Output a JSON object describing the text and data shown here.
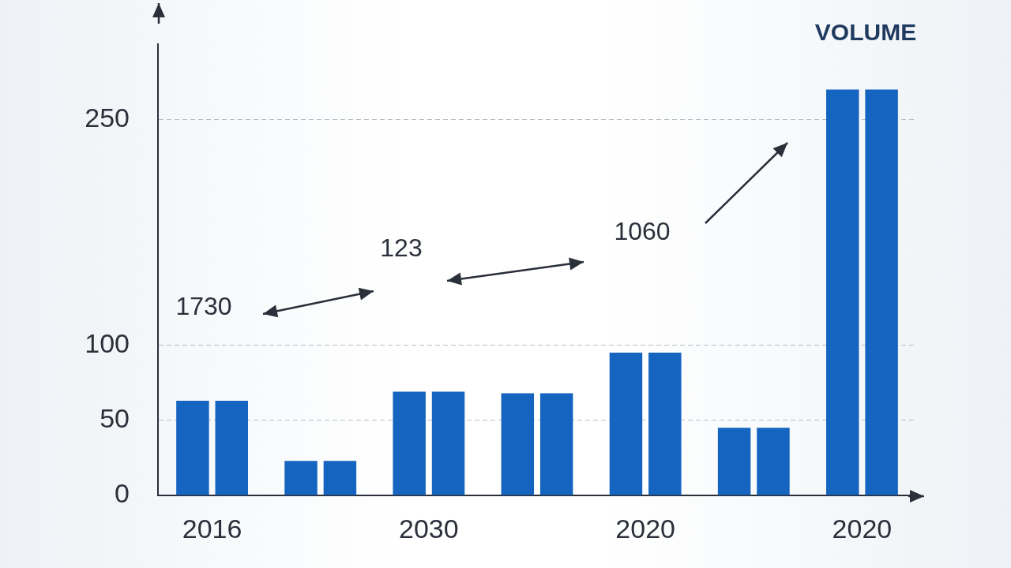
{
  "chart_data": {
    "type": "bar",
    "title": "VOLUME",
    "categories": [
      "2016",
      null,
      "2030",
      null,
      "2020",
      null,
      "2020"
    ],
    "series": [
      {
        "color": "#1565c0",
        "values": [
          63,
          23,
          69,
          68,
          95,
          45,
          270
        ]
      },
      {
        "color": "#1565c0",
        "values": [
          63,
          23,
          69,
          68,
          95,
          45,
          270
        ]
      }
    ],
    "ylim": [
      0,
      300
    ],
    "yticks": [
      0,
      50,
      100,
      250
    ],
    "grid": "y",
    "legend": false,
    "annotations": [
      "1730",
      "123",
      "1060"
    ]
  }
}
